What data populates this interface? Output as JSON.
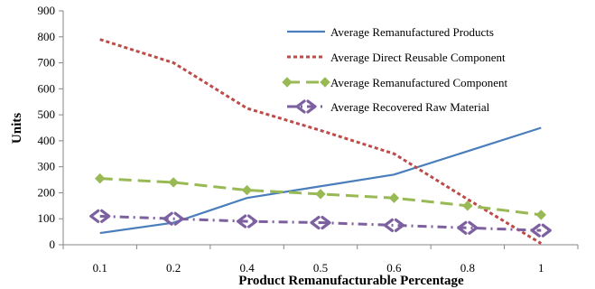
{
  "chart_data": {
    "type": "line",
    "title": "",
    "xlabel": "Product Remanufacturable Percentage",
    "ylabel": "Units",
    "categories": [
      "0.1",
      "0.2",
      "0.4",
      "0.5",
      "0.6",
      "0.8",
      "1"
    ],
    "ylim": [
      0,
      900
    ],
    "yticks": [
      0,
      100,
      200,
      300,
      400,
      500,
      600,
      700,
      800,
      900
    ],
    "grid": false,
    "legend_position": "top-right",
    "series": [
      {
        "name": "Average Remanufactured Products",
        "values": [
          45,
          85,
          180,
          225,
          270,
          360,
          450
        ],
        "color": "#4a7ebb",
        "style": "solid",
        "marker": "none"
      },
      {
        "name": "Average Direct Reusable Component",
        "values": [
          790,
          700,
          525,
          440,
          350,
          175,
          5
        ],
        "color": "#be4b48",
        "style": "dashed",
        "marker": "none"
      },
      {
        "name": "Average Remanufactured Component",
        "values": [
          255,
          240,
          210,
          195,
          180,
          150,
          115
        ],
        "color": "#98b954",
        "style": "long-dash",
        "marker": "diamond"
      },
      {
        "name": "Average Recovered Raw Material",
        "values": [
          110,
          100,
          90,
          85,
          75,
          65,
          55
        ],
        "color": "#7d60a0",
        "style": "dash-dot",
        "marker": "arrows"
      }
    ]
  }
}
